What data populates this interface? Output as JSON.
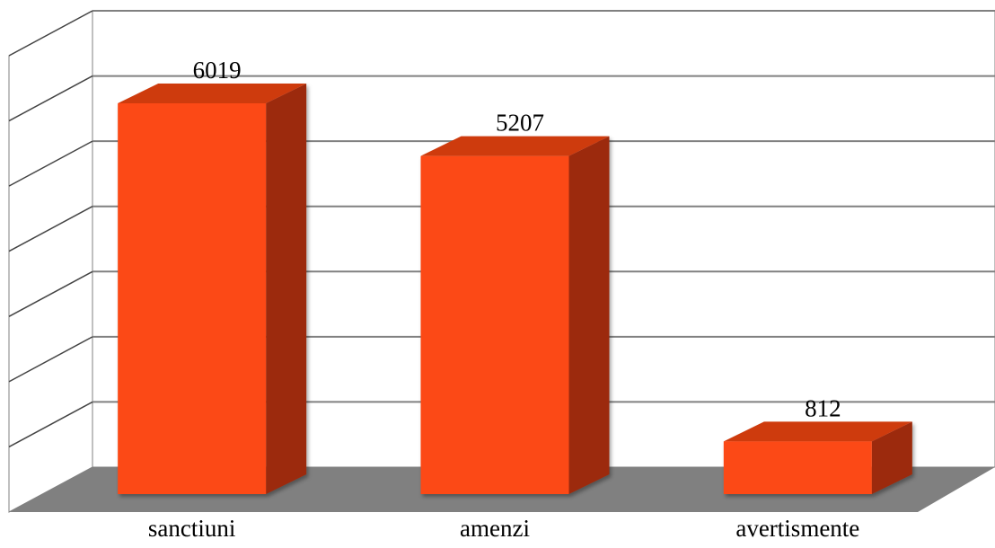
{
  "chart_data": {
    "type": "bar",
    "style": "3d-column",
    "categories": [
      "sanctiuni",
      "amenzi",
      "avertismente"
    ],
    "values": [
      6019,
      5207,
      812
    ],
    "data_labels": [
      "6019",
      "5207",
      "812"
    ],
    "ylim": [
      0,
      7000
    ],
    "grid": true,
    "legend": "none",
    "title": "",
    "xlabel": "",
    "ylabel": ""
  },
  "colors": {
    "bar_front": "#fc4a13",
    "bar_top": "#ce3a0e",
    "bar_side": "#9c2a09",
    "floor": "#808080",
    "grid": "#808080",
    "background": "#ffffff"
  }
}
